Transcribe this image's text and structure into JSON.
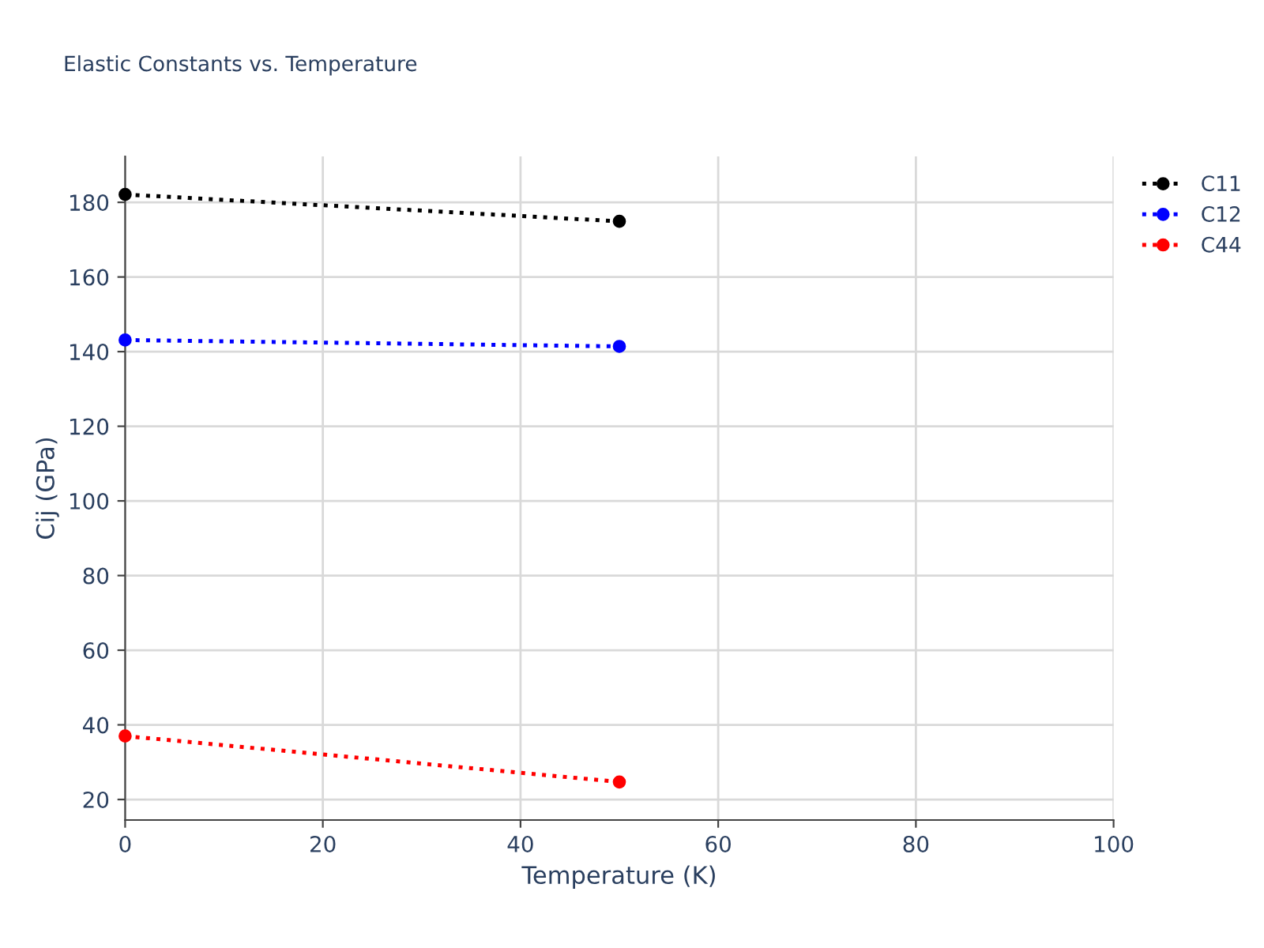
{
  "chart_data": {
    "type": "line",
    "title": "Elastic Constants vs. Temperature",
    "xlabel": "Temperature (K)",
    "ylabel": "Cij (GPa)",
    "x": [
      0,
      50
    ],
    "series": [
      {
        "name": "C11",
        "color": "#000000",
        "values": [
          182.1,
          174.9
        ]
      },
      {
        "name": "C12",
        "color": "#0000ff",
        "values": [
          143.1,
          141.4
        ]
      },
      {
        "name": "C44",
        "color": "#ff0000",
        "values": [
          37.0,
          24.7
        ]
      }
    ],
    "xlim": [
      0,
      100
    ],
    "xticks": [
      0,
      20,
      40,
      60,
      80,
      100
    ],
    "ylim": [
      14.5,
      192.3
    ],
    "yticks": [
      20,
      40,
      60,
      80,
      100,
      120,
      140,
      160,
      180
    ],
    "grid": true,
    "legend": "top right",
    "marker": "circle",
    "line_style": "dotted"
  }
}
